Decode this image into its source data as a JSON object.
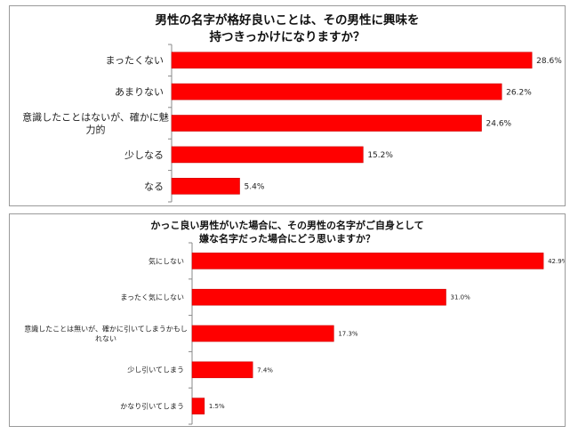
{
  "colors": {
    "bar": "#ff0000",
    "bar_edge": "#cc0000",
    "axis": "#888888",
    "text": "#222222"
  },
  "chart_data": [
    {
      "type": "bar",
      "orientation": "horizontal",
      "title": [
        "男性の名字が格好良いことは、その男性に興味を",
        "持つきっかけになりますか？"
      ],
      "categories": [
        [
          "まったくない"
        ],
        [
          "あまりない"
        ],
        [
          "意識したことはないが、確かに魅",
          "力的"
        ],
        [
          "少しなる"
        ],
        [
          "なる"
        ]
      ],
      "values": [
        28.6,
        26.2,
        24.6,
        15.2,
        5.4
      ],
      "value_labels": [
        "28.6%",
        "26.2%",
        "24.6%",
        "15.2%",
        "5.4%"
      ],
      "xlim": [
        0,
        30
      ],
      "legend": "none",
      "grid": false
    },
    {
      "type": "bar",
      "orientation": "horizontal",
      "title": [
        "かっこ良い男性がいた場合に、その男性の名字がご自身として",
        "嫌な名字だった場合にどう思いますか？"
      ],
      "categories": [
        [
          "気にしない"
        ],
        [
          "まったく気にしない"
        ],
        [
          "意識したことは無いが、確かに引いてしまうかもし",
          "れない"
        ],
        [
          "少し引いてしまう"
        ],
        [
          "かなり引いてしまう"
        ]
      ],
      "values": [
        42.9,
        31.0,
        17.3,
        7.4,
        1.5
      ],
      "value_labels": [
        "42.9%",
        "31.0%",
        "17.3%",
        "7.4%",
        "1.5%"
      ],
      "xlim": [
        0,
        43
      ],
      "legend": "none",
      "grid": false
    }
  ]
}
